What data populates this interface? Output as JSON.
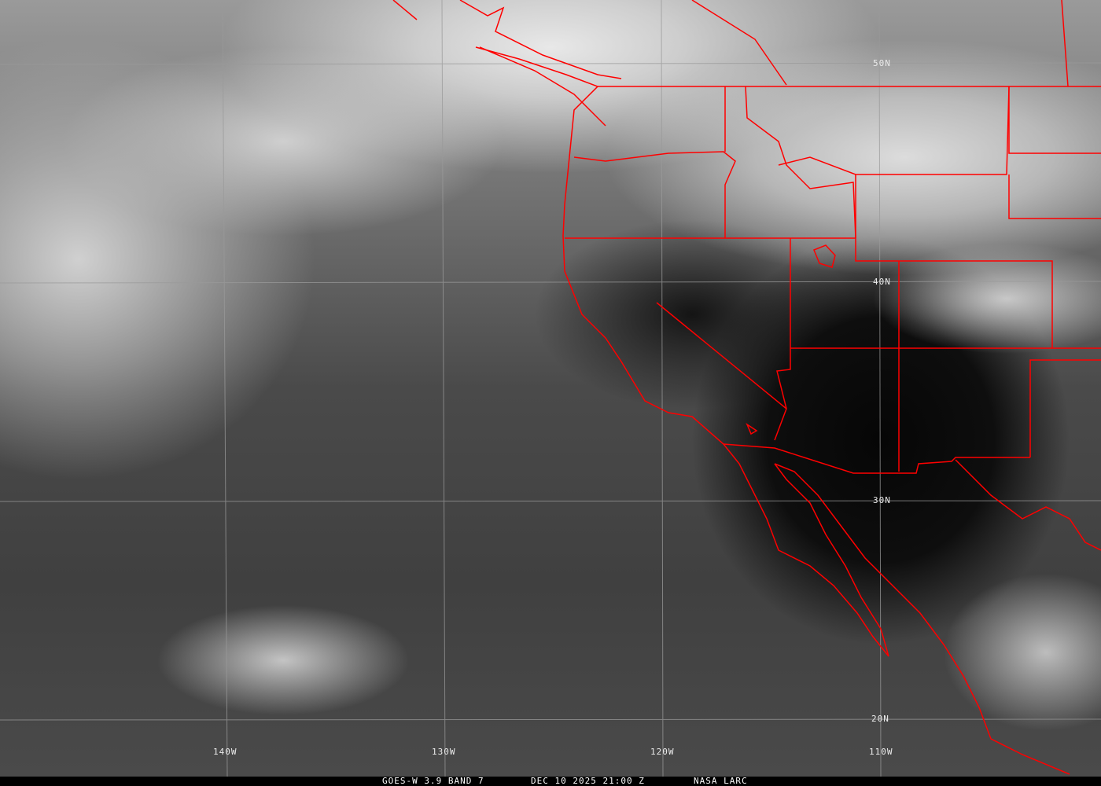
{
  "image": {
    "type": "satellite infrared imagery",
    "colormap": "grayscale",
    "overlay_color": "#ff0000",
    "grid_color": "#9a9a9a"
  },
  "grid_labels": {
    "lat": [
      "50N",
      "40N",
      "30N",
      "20N"
    ],
    "lon": [
      "140W",
      "130W",
      "120W",
      "110W"
    ]
  },
  "footer": {
    "product": "GOES-W 3.9 BAND 7",
    "datetime": "DEC 10 2025 21:00 Z",
    "credit": "NASA LARC"
  }
}
